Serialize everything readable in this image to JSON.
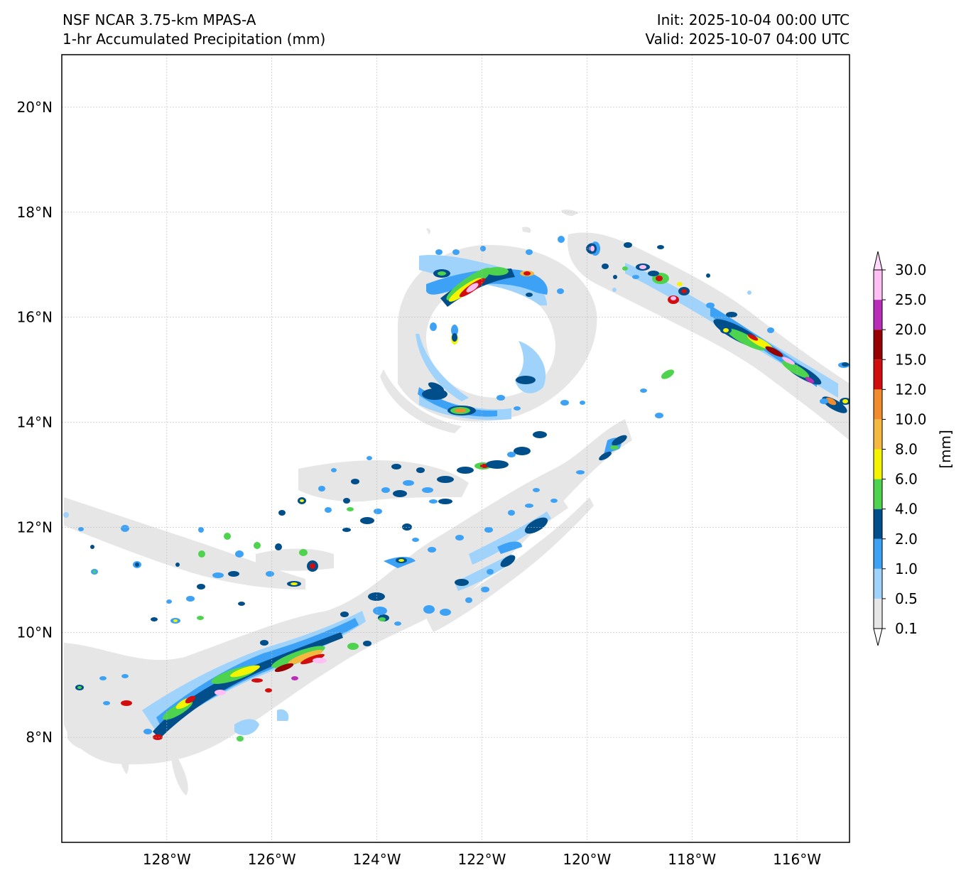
{
  "header": {
    "model": "NSF NCAR 3.75-km MPAS-A",
    "field": "1-hr Accumulated Precipitation (mm)",
    "init": "Init: 2025-10-04 00:00 UTC",
    "valid": "Valid: 2025-10-07 04:00 UTC"
  },
  "map": {
    "lon_range": [
      -130,
      -115
    ],
    "lat_range": [
      6,
      21
    ],
    "lon_ticks": [
      {
        "value": -128,
        "label": "128°W"
      },
      {
        "value": -126,
        "label": "126°W"
      },
      {
        "value": -124,
        "label": "124°W"
      },
      {
        "value": -122,
        "label": "122°W"
      },
      {
        "value": -120,
        "label": "120°W"
      },
      {
        "value": -118,
        "label": "118°W"
      },
      {
        "value": -116,
        "label": "116°W"
      }
    ],
    "lat_ticks": [
      {
        "value": 8,
        "label": "8°N"
      },
      {
        "value": 10,
        "label": "10°N"
      },
      {
        "value": 12,
        "label": "12°N"
      },
      {
        "value": 14,
        "label": "14°N"
      },
      {
        "value": 16,
        "label": "16°N"
      },
      {
        "value": 18,
        "label": "18°N"
      },
      {
        "value": 20,
        "label": "20°N"
      }
    ],
    "gridlines": true
  },
  "colorbar": {
    "unit_label": "[mm]",
    "extend": "both",
    "levels": [
      "0.1",
      "0.5",
      "1.0",
      "2.0",
      "4.0",
      "6.0",
      "8.0",
      "10.0",
      "12.0",
      "15.0",
      "20.0",
      "25.0",
      "30.0"
    ],
    "colors": [
      "#e6e6e6",
      "#9fd3fb",
      "#3da2f5",
      "#004f8a",
      "#4ed34e",
      "#f4f400",
      "#f5b840",
      "#f08c2e",
      "#d20d0d",
      "#960000",
      "#b82eb8",
      "#ffbff5"
    ],
    "under_color": "#ffffff",
    "over_color": "#ffd8fa"
  }
}
